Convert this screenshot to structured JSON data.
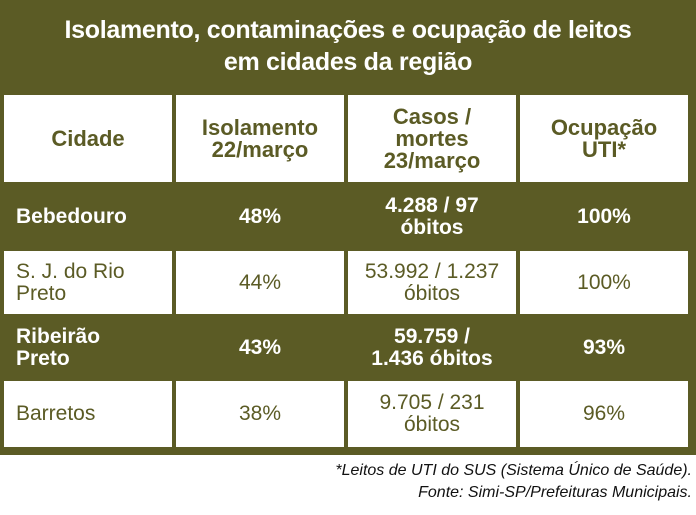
{
  "title": {
    "line1": "Isolamento, contaminações e ocupação de leitos",
    "line2": "em cidades da região"
  },
  "headers": [
    "Cidade",
    "Isolamento\n22/março",
    "Casos /\nmortes\n23/março",
    "Ocupação\nUTI*"
  ],
  "rows": [
    {
      "city": "Bebedouro",
      "isolamento": "48%",
      "casos": "4.288 / 97\nóbitos",
      "uti": "100%"
    },
    {
      "city": "S. J. do Rio\nPreto",
      "isolamento": "44%",
      "casos": "53.992  / 1.237\nóbitos",
      "uti": "100%"
    },
    {
      "city": "Ribeirão\nPreto",
      "isolamento": "43%",
      "casos": "59.759 /\n1.436 óbitos",
      "uti": "93%"
    },
    {
      "city": "Barretos",
      "isolamento": "38%",
      "casos": "9.705 / 231\nóbitos",
      "uti": "96%"
    }
  ],
  "footnotes": {
    "note": "*Leitos de UTI do SUS (Sistema Único de Saúde).",
    "source": "Fonte: Simi-SP/Prefeituras Municipais."
  },
  "colors": {
    "olive": "#5b5b25",
    "white": "#ffffff"
  }
}
